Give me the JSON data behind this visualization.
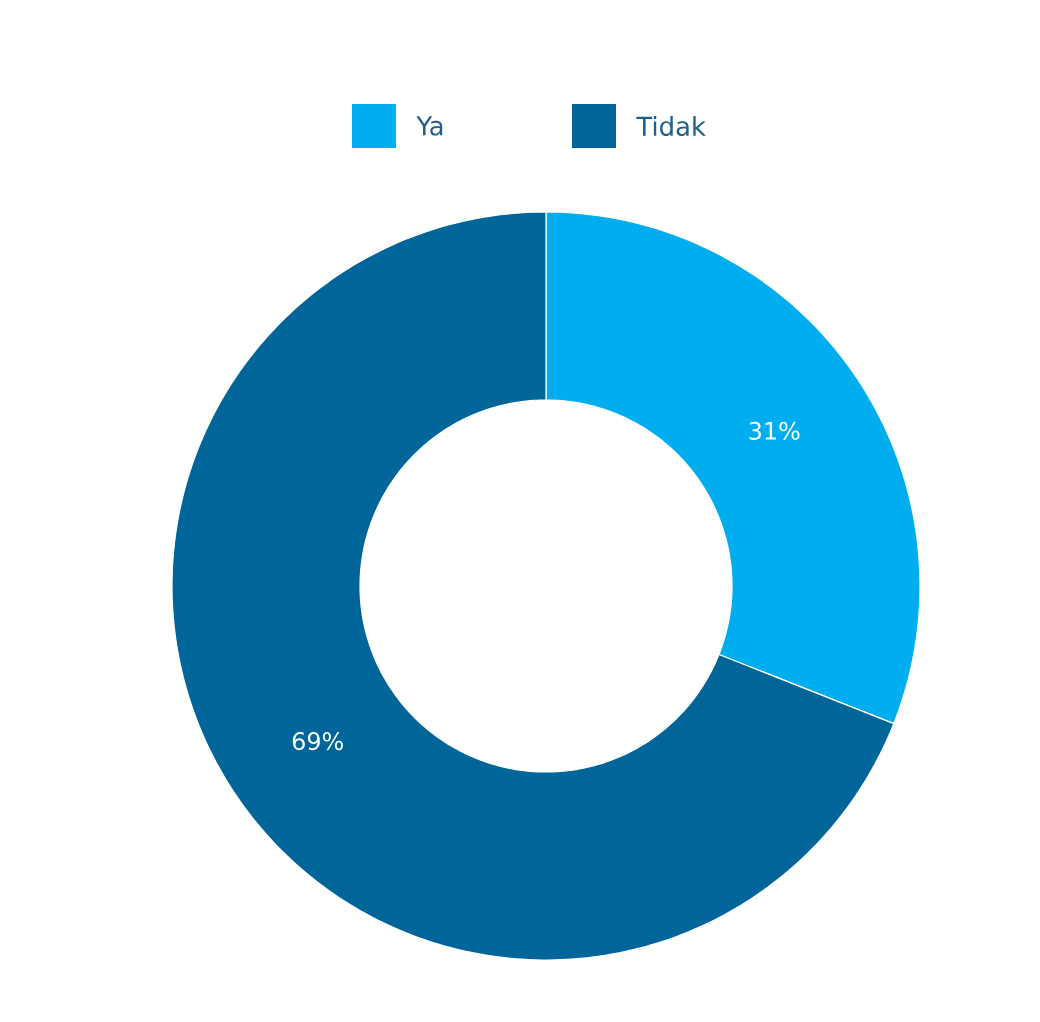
{
  "chart_data": {
    "type": "donut",
    "categories": [
      "Ya",
      "Tidak"
    ],
    "values": [
      31,
      69
    ],
    "colors": [
      "#00aeef",
      "#006699"
    ],
    "value_labels": [
      "31%",
      "69%"
    ],
    "legend": "top"
  }
}
